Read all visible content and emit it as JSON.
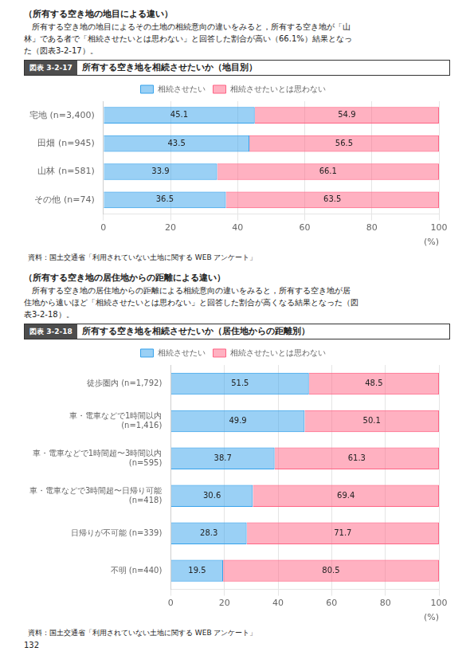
{
  "annotations": [
    "132"
  ],
  "chart_data": [
    {
      "type": "bar",
      "orientation": "horizontal",
      "stacked": true,
      "data_labels": true,
      "grid": true,
      "legend": "top",
      "title": "所有する空き地を相続させたいか（地目別）",
      "annotations": [
        "（所有する空き地の地目による違い）",
        "　所有する空き地の地目によるその土地の相続意向の違いをみると，所有する空き地が「山",
        "林」である者で「相続させたいとは思わない」と回答した割合が高い（66.1%）結果となっ",
        "た（図表3-2-17）。",
        "図表 3-2-17",
        "資料：国土交通省「利用されていない土地に関する WEB アンケート」"
      ],
      "x_label": "(%)",
      "categories": [
        "宅地 (n=3,400)",
        "田畑 (n=945)",
        "山林 (n=581)",
        "その他 (n=74)"
      ],
      "series": [
        {
          "name": "相続させたい",
          "values": [
            45.1,
            43.5,
            33.9,
            36.5
          ]
        },
        {
          "name": "相続させたいとは思わない",
          "values": [
            54.9,
            56.5,
            66.1,
            63.5
          ]
        }
      ],
      "xlim": [
        0,
        100
      ],
      "xticks": [
        0,
        20,
        40,
        60,
        80,
        100
      ]
    },
    {
      "type": "bar",
      "orientation": "horizontal",
      "stacked": true,
      "data_labels": true,
      "grid": true,
      "legend": "top",
      "title": "所有する空き地を相続させたいか（居住地からの距離別）",
      "annotations": [
        "（所有する空き地の居住地からの距離による違い）",
        "　所有する空き地の居住地からの距離による相続意向の違いをみると，所有する空き地が居",
        "住地から遠いほど「相続させたいとは思わない」と回答した割合が高くなる結果となった（図",
        "表3-2-18）。",
        "図表 3-2-18",
        "資料：国土交通省「利用されていない土地に関する WEB アンケート」"
      ],
      "x_label": "(%)",
      "categories": [
        "徒歩圏内 (n=1,792)",
        "車・電車などで1時間以内\n(n=1,416)",
        "車・電車などで1時間超〜3時間以内\n(n=595)",
        "車・電車などで3時間超〜日帰り可能\n(n=418)",
        "日帰りが不可能 (n=339)",
        "不明 (n=440)"
      ],
      "series": [
        {
          "name": "相続させたい",
          "values": [
            51.5,
            49.9,
            38.7,
            30.6,
            28.3,
            19.5
          ]
        },
        {
          "name": "相続させたいとは思わない",
          "values": [
            48.5,
            50.1,
            61.3,
            69.4,
            71.7,
            80.5
          ]
        }
      ],
      "xlim": [
        0,
        100
      ],
      "xticks": [
        0,
        20,
        40,
        60,
        80,
        100
      ]
    }
  ]
}
